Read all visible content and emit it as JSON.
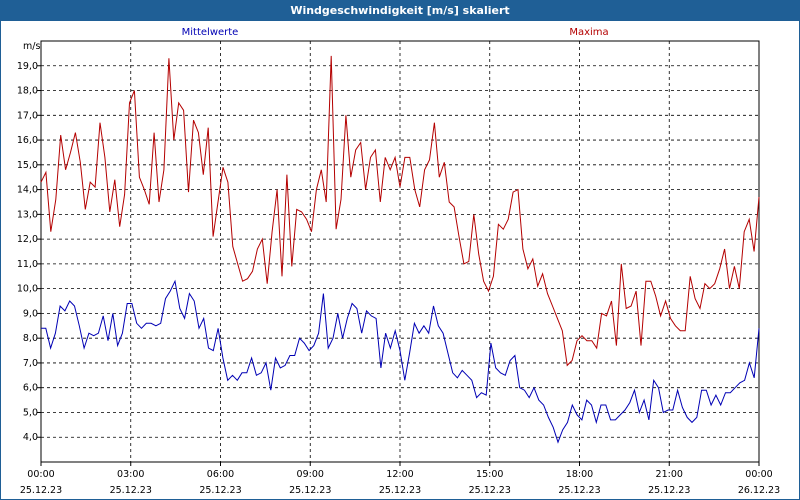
{
  "window": {
    "title": "Windgeschwindigkeit [m/s] skaliert"
  },
  "chart_data": {
    "type": "line",
    "title": "Windgeschwindigkeit [m/s] skaliert",
    "ylabel": "m/s",
    "xlabel": "",
    "ylim": [
      3.0,
      20.0
    ],
    "xlim": [
      0,
      24
    ],
    "grid": true,
    "y_ticks": [
      "4,0",
      "5,0",
      "6,0",
      "7,0",
      "8,0",
      "9,0",
      "10,0",
      "11,0",
      "12,0",
      "13,0",
      "14,0",
      "15,0",
      "16,0",
      "17,0",
      "18,0",
      "19,0"
    ],
    "y_tick_values": [
      4,
      5,
      6,
      7,
      8,
      9,
      10,
      11,
      12,
      13,
      14,
      15,
      16,
      17,
      18,
      19
    ],
    "x_tick_values": [
      0,
      3,
      6,
      9,
      12,
      15,
      18,
      21,
      24
    ],
    "x_tick_times": [
      "00:00",
      "03:00",
      "06:00",
      "09:00",
      "12:00",
      "15:00",
      "18:00",
      "21:00",
      "00:00"
    ],
    "x_tick_dates": [
      "25.12.23",
      "25.12.23",
      "25.12.23",
      "25.12.23",
      "25.12.23",
      "25.12.23",
      "25.12.23",
      "25.12.23",
      "26.12.23"
    ],
    "series": [
      {
        "name": "Mittelwerte",
        "color": "#0000b4",
        "values": [
          8.4,
          8.4,
          7.6,
          8.2,
          9.3,
          9.1,
          9.5,
          9.3,
          8.5,
          7.6,
          8.2,
          8.1,
          8.2,
          8.9,
          7.9,
          9.0,
          7.7,
          8.2,
          9.4,
          9.4,
          8.6,
          8.4,
          8.6,
          8.6,
          8.5,
          8.6,
          9.6,
          9.9,
          10.3,
          9.2,
          8.8,
          9.8,
          9.5,
          8.4,
          8.8,
          7.6,
          7.5,
          8.4,
          7.2,
          6.3,
          6.5,
          6.3,
          6.6,
          6.6,
          7.2,
          6.5,
          6.6,
          7.0,
          5.9,
          7.2,
          6.8,
          6.9,
          7.3,
          7.3,
          8.0,
          7.8,
          7.5,
          7.7,
          8.2,
          9.8,
          7.6,
          8.0,
          9.0,
          8.0,
          8.8,
          9.4,
          9.2,
          8.2,
          9.1,
          8.9,
          8.8,
          6.8,
          8.2,
          7.6,
          8.3,
          7.5,
          6.3,
          7.4,
          8.6,
          8.2,
          8.5,
          8.2,
          9.3,
          8.5,
          8.2,
          7.4,
          6.6,
          6.4,
          6.7,
          6.5,
          6.3,
          5.6,
          5.8,
          5.7,
          7.8,
          6.8,
          6.6,
          6.5,
          7.1,
          7.3,
          6.0,
          5.9,
          5.6,
          6.0,
          5.5,
          5.3,
          4.8,
          4.4,
          3.8,
          4.3,
          4.6,
          5.3,
          4.9,
          4.7,
          5.5,
          5.3,
          4.6,
          5.3,
          5.3,
          4.7,
          4.7,
          4.9,
          5.1,
          5.4,
          5.9,
          5.0,
          5.5,
          4.7,
          6.3,
          6.0,
          5.0,
          5.1,
          5.1,
          5.9,
          5.2,
          4.8,
          4.6,
          4.8,
          5.9,
          5.9,
          5.3,
          5.7,
          5.3,
          5.8,
          5.8,
          6.0,
          6.2,
          6.3,
          7.0,
          6.4,
          8.4
        ]
      },
      {
        "name": "Maxima",
        "color": "#b40000",
        "values": [
          14.3,
          14.7,
          12.3,
          13.6,
          16.2,
          14.8,
          15.5,
          16.3,
          15.1,
          13.2,
          14.3,
          14.1,
          16.7,
          15.3,
          13.1,
          14.4,
          12.5,
          13.8,
          17.5,
          18.0,
          14.5,
          14.0,
          13.4,
          16.3,
          13.5,
          14.8,
          19.3,
          16.0,
          17.5,
          17.2,
          13.9,
          16.8,
          16.3,
          14.6,
          16.5,
          12.1,
          13.5,
          14.9,
          14.3,
          11.7,
          11.0,
          10.3,
          10.4,
          10.7,
          11.6,
          12.0,
          10.2,
          12.3,
          14.0,
          10.5,
          14.6,
          10.9,
          13.2,
          13.1,
          12.8,
          12.3,
          14.0,
          14.8,
          13.5,
          19.4,
          12.4,
          13.6,
          17.0,
          14.5,
          15.6,
          15.9,
          14.0,
          15.3,
          15.6,
          13.5,
          15.3,
          14.8,
          15.3,
          14.1,
          15.3,
          15.3,
          14.0,
          13.3,
          14.8,
          15.2,
          16.7,
          14.5,
          15.1,
          13.5,
          13.3,
          12.1,
          11.0,
          11.1,
          13.0,
          11.4,
          10.3,
          9.9,
          10.5,
          12.6,
          12.4,
          12.8,
          13.9,
          14.0,
          11.6,
          10.8,
          11.2,
          10.1,
          10.6,
          9.8,
          9.3,
          8.8,
          8.3,
          6.9,
          7.1,
          7.9,
          8.1,
          7.9,
          7.9,
          7.6,
          9.0,
          8.9,
          9.5,
          7.7,
          11.0,
          9.2,
          9.3,
          9.9,
          7.7,
          10.3,
          10.3,
          9.7,
          8.9,
          9.5,
          8.8,
          8.5,
          8.3,
          8.3,
          10.5,
          9.6,
          9.2,
          10.2,
          10.0,
          10.2,
          10.8,
          11.6,
          10.0,
          10.9,
          10.0,
          12.3,
          12.8,
          11.5,
          13.7
        ]
      }
    ]
  }
}
